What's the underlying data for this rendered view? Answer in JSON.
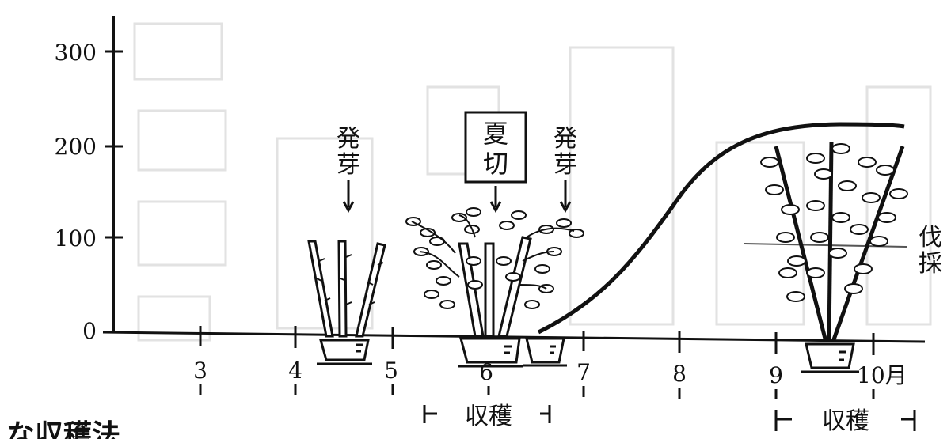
{
  "y_ticks": [
    "300",
    "200",
    "100",
    "0"
  ],
  "x_ticks": [
    "3",
    "4",
    "5",
    "6",
    "7",
    "8",
    "9",
    "10月"
  ],
  "labels": {
    "sprout_1": "発芽",
    "summer_cut": "夏切",
    "sprout_2": "発芽",
    "harvest_1": "収穫",
    "harvest_2": "収穫",
    "right_cut": "伐採",
    "bottom_caption": "な収穫法"
  },
  "colors": {
    "ink": "#111111",
    "paper": "#ffffff",
    "ghost": "#d9d9d9"
  }
}
